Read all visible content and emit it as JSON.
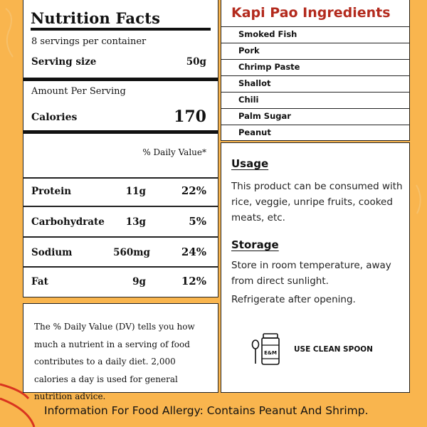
{
  "nutrition": {
    "title": "Nutrition Facts",
    "servings": "8 servings per container",
    "serving_size_label": "Serving size",
    "serving_size_value": "50g",
    "amount_per_serving": "Amount Per Serving",
    "calories_label": "Calories",
    "calories_value": "170",
    "daily_value_header": "% Daily Value*",
    "rows": [
      {
        "label": "Protein",
        "amount": "11g",
        "pct": "22%"
      },
      {
        "label": "Carbohydrate",
        "amount": "13g",
        "pct": "5%"
      },
      {
        "label": "Sodium",
        "amount": "560mg",
        "pct": "24%"
      },
      {
        "label": "Fat",
        "amount": "9g",
        "pct": "12%"
      }
    ]
  },
  "dv_note": "The % Daily Value (DV) tells you how much a nutrient in a serving of food contributes to a daily diet. 2,000 calories a day is used for general nutrition advice.",
  "ingredients": {
    "title": "Kapi Pao Ingredients",
    "items": [
      "Smoked Fish",
      "Pork",
      "Chrimp Paste",
      "Shallot",
      "Chili",
      "Palm Sugar",
      "Peanut"
    ]
  },
  "usage": {
    "heading": "Usage",
    "text": "This product can be consumed with rice, veggie, unripe fruits, cooked meats, etc.",
    "storage_heading": "Storage",
    "storage_text": "Store in room temperature, away from direct sunlight.",
    "refrigerate_text": "Refrigerate after opening.",
    "jar_label": "E&M",
    "spoon_label": "USE CLEAN SPOON"
  },
  "allergy_text": "Information For Food Allergy: Contains Peanut And Shrimp.",
  "colors": {
    "background": "#f9b54e",
    "accent_red": "#b32a1d",
    "swirl": "#d9341f"
  }
}
